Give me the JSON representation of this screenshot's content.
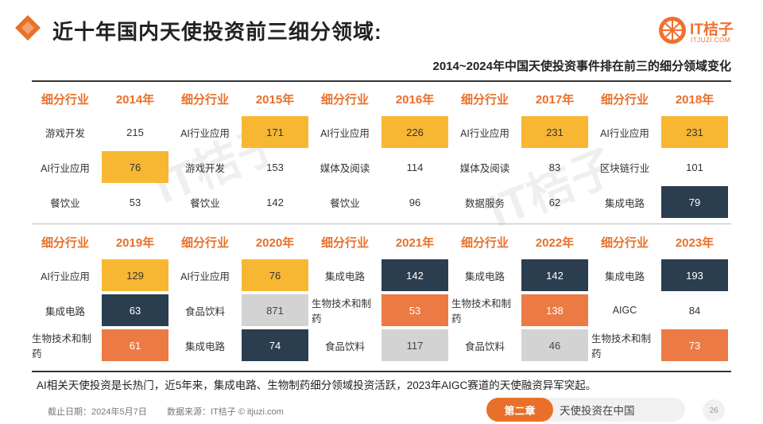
{
  "header": {
    "title": "近十年国内天使投资前三细分领域:",
    "logo_text": "IT桔子",
    "logo_sub": "ITJUZI.COM",
    "subtitle": "2014~2024年中国天使投资事件排在前三的细分领域变化"
  },
  "watermark": {
    "text": "IT桔子",
    "sub": "ITJUZI.COM"
  },
  "colors": {
    "accent": "#e8702a",
    "yellow": "#f7b733",
    "navy": "#2b3e50",
    "orange": "#ec7a44",
    "gray": "#d3d3d3"
  },
  "chart_data": {
    "type": "table",
    "columns_label": "细分行业",
    "groups": [
      {
        "year": "2014年",
        "rows": [
          {
            "industry": "游戏开发",
            "value": 215,
            "highlight": "plain"
          },
          {
            "industry": "AI行业应用",
            "value": 76,
            "highlight": "yellow"
          },
          {
            "industry": "餐饮业",
            "value": 53,
            "highlight": "plain"
          }
        ]
      },
      {
        "year": "2015年",
        "rows": [
          {
            "industry": "AI行业应用",
            "value": 171,
            "highlight": "yellow"
          },
          {
            "industry": "游戏开发",
            "value": 153,
            "highlight": "plain"
          },
          {
            "industry": "餐饮业",
            "value": 142,
            "highlight": "plain"
          }
        ]
      },
      {
        "year": "2016年",
        "rows": [
          {
            "industry": "AI行业应用",
            "value": 226,
            "highlight": "yellow"
          },
          {
            "industry": "媒体及阅读",
            "value": 114,
            "highlight": "plain"
          },
          {
            "industry": "餐饮业",
            "value": 96,
            "highlight": "plain"
          }
        ]
      },
      {
        "year": "2017年",
        "rows": [
          {
            "industry": "AI行业应用",
            "value": 231,
            "highlight": "yellow"
          },
          {
            "industry": "媒体及阅读",
            "value": 83,
            "highlight": "plain"
          },
          {
            "industry": "数据服务",
            "value": 62,
            "highlight": "plain"
          }
        ]
      },
      {
        "year": "2018年",
        "rows": [
          {
            "industry": "AI行业应用",
            "value": 231,
            "highlight": "yellow"
          },
          {
            "industry": "区块链行业",
            "value": 101,
            "highlight": "plain"
          },
          {
            "industry": "集成电路",
            "value": 79,
            "highlight": "navy"
          }
        ]
      },
      {
        "year": "2019年",
        "rows": [
          {
            "industry": "AI行业应用",
            "value": 129,
            "highlight": "yellow"
          },
          {
            "industry": "集成电路",
            "value": 63,
            "highlight": "navy"
          },
          {
            "industry": "生物技术和制药",
            "value": 61,
            "highlight": "orange"
          }
        ]
      },
      {
        "year": "2020年",
        "rows": [
          {
            "industry": "AI行业应用",
            "value": 76,
            "highlight": "yellow"
          },
          {
            "industry": "食品饮料",
            "value": 871,
            "highlight": "gray"
          },
          {
            "industry": "集成电路",
            "value": 74,
            "highlight": "navy"
          }
        ]
      },
      {
        "year": "2021年",
        "rows": [
          {
            "industry": "集成电路",
            "value": 142,
            "highlight": "navy"
          },
          {
            "industry": "生物技术和制药",
            "value": 53,
            "highlight": "orange"
          },
          {
            "industry": "食品饮料",
            "value": 117,
            "highlight": "gray"
          }
        ]
      },
      {
        "year": "2022年",
        "rows": [
          {
            "industry": "集成电路",
            "value": 142,
            "highlight": "navy"
          },
          {
            "industry": "生物技术和制药",
            "value": 138,
            "highlight": "orange"
          },
          {
            "industry": "食品饮料",
            "value": 46,
            "highlight": "gray"
          }
        ]
      },
      {
        "year": "2023年",
        "rows": [
          {
            "industry": "集成电路",
            "value": 193,
            "highlight": "navy"
          },
          {
            "industry": "AIGC",
            "value": 84,
            "highlight": "plain"
          },
          {
            "industry": "生物技术和制药",
            "value": 73,
            "highlight": "orange"
          }
        ]
      }
    ]
  },
  "note": "AI相关天使投资是长热门，近5年来，集成电路、生物制药细分领域投资活跃，2023年AIGC赛道的天使融资异军突起。",
  "footer": {
    "date": "截止日期：2024年5月7日",
    "source": "数据来源：IT桔子 © itjuzi.com",
    "chapter_label": "第二章",
    "chapter_name": "天使投资在中国",
    "page_number": "26"
  }
}
